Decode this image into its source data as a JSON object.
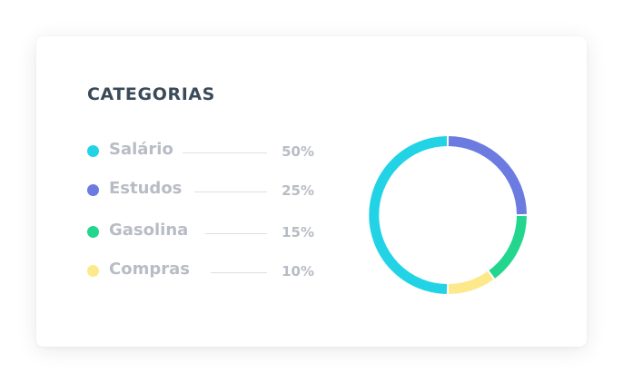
{
  "card": {
    "title": "CATEGORIAS"
  },
  "chart_data": {
    "type": "pie",
    "title": "CATEGORIAS",
    "categories": [
      "Salário",
      "Estudos",
      "Gasolina",
      "Compras"
    ],
    "values": [
      50,
      25,
      15,
      10
    ],
    "value_labels": [
      "50%",
      "25%",
      "15%",
      "10%"
    ],
    "colors": [
      "#22d3e6",
      "#6b7be0",
      "#22d68e",
      "#fde98a"
    ],
    "legend": "left"
  }
}
